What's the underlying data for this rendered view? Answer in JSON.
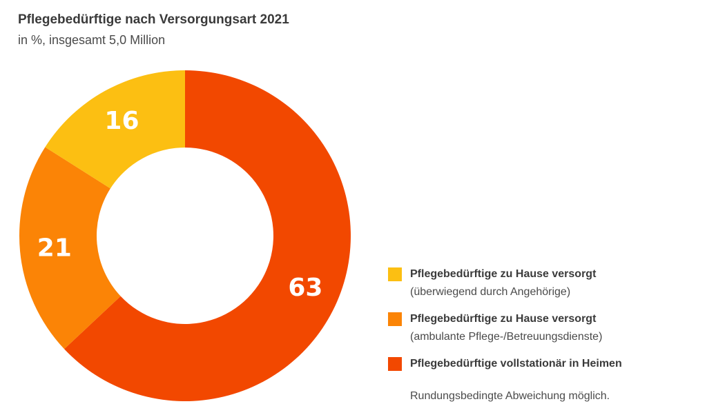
{
  "chart_data": {
    "type": "pie",
    "title": "Pflegebedürftige nach Versorgungsart 2021",
    "subtitle": "in %, insgesamt 5,0 Million",
    "donut": true,
    "slices": [
      {
        "label": "Pflegebedürftige vollstationär in Heimen",
        "sublabel": "",
        "value": 63,
        "value_label": "63",
        "color": "#f24800"
      },
      {
        "label": "Pflegebedürftige zu Hause versorgt",
        "sublabel": "(ambulante Pflege-/Betreuungsdienste)",
        "value": 21,
        "value_label": "21",
        "color": "#fb8406"
      },
      {
        "label": "Pflegebedürftige zu Hause versorgt",
        "sublabel": "(überwiegend durch Angehörige)",
        "value": 16,
        "value_label": "16",
        "color": "#fcbf12"
      }
    ],
    "legend_order": [
      2,
      1,
      0
    ],
    "legend_position": "bottom-right",
    "note": "Rundungsbedingte Abweichung möglich."
  }
}
